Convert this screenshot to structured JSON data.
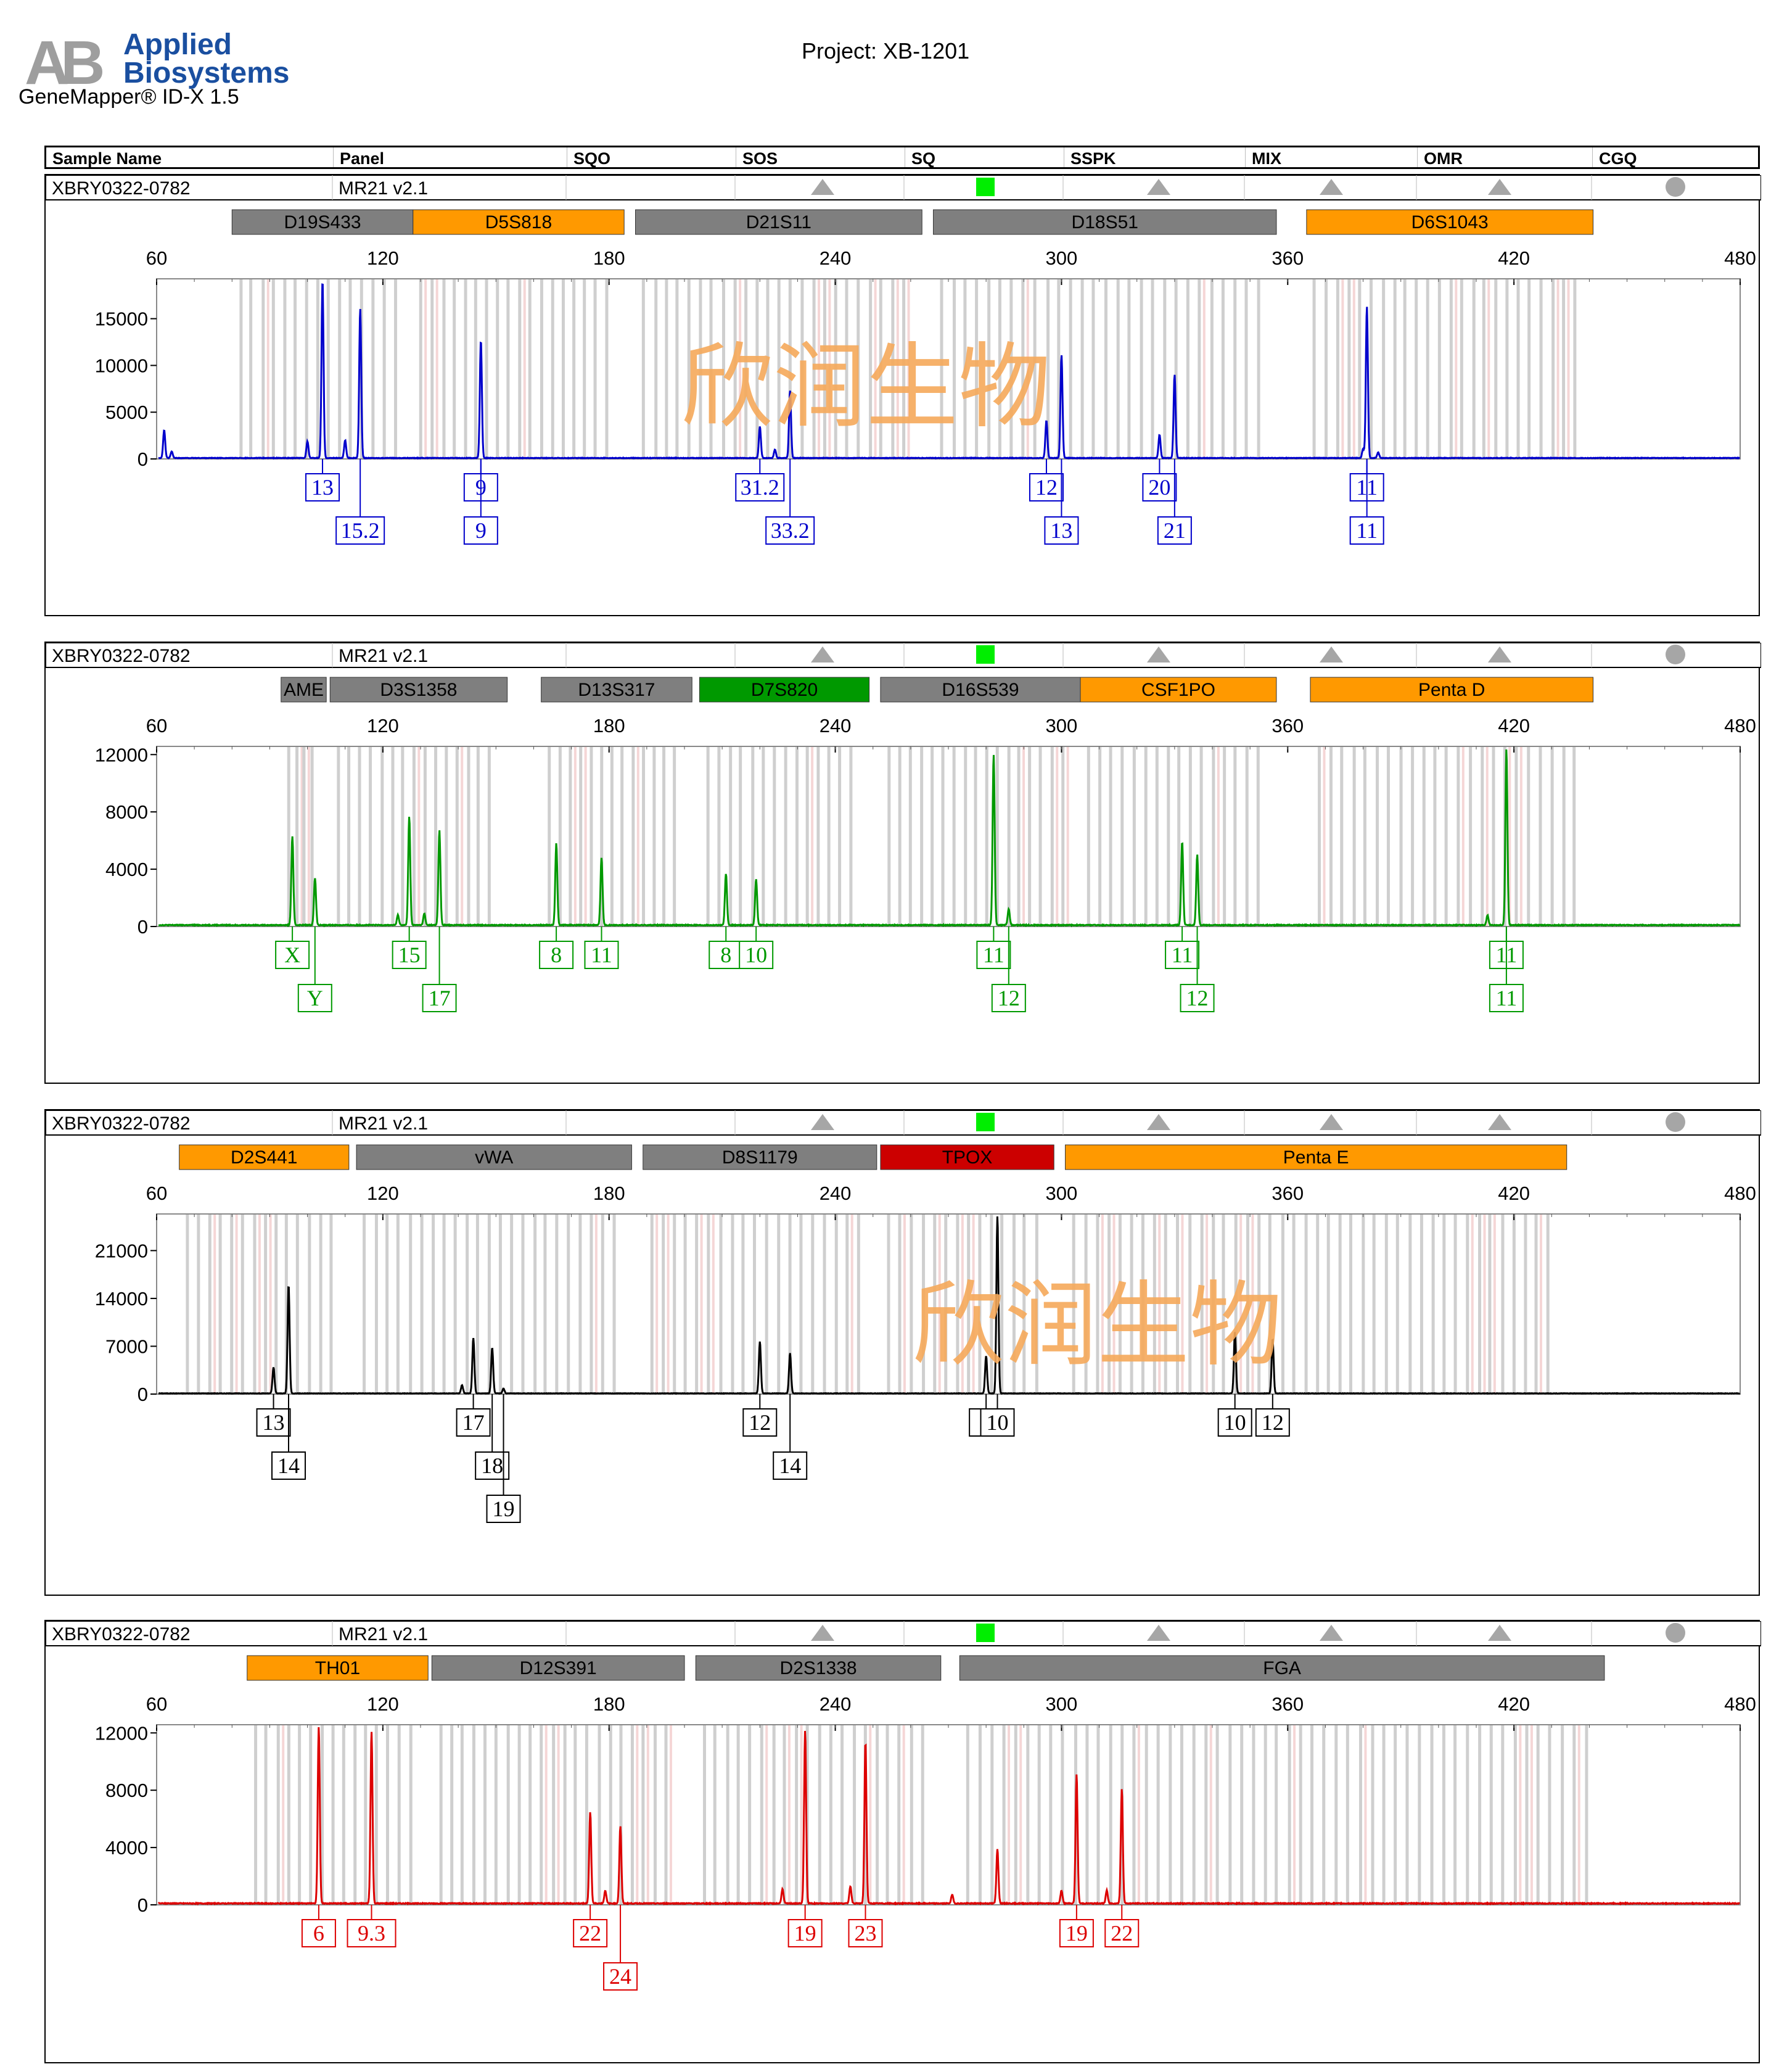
{
  "software": "GeneMapper® ID-X  1.5",
  "project": "Project: XB-1201",
  "logo": {
    "line1": "Applied",
    "line2": "Biosystems",
    "mark": "AB"
  },
  "header": [
    "Sample Name",
    "Panel",
    "SQO",
    "SOS",
    "SQ",
    "SSPK",
    "MIX",
    "OMR",
    "CGQ"
  ],
  "watermark": "欣润生物",
  "colors": {
    "blue": "#0000cc",
    "green": "#009900",
    "black": "#000000",
    "red": "#dd0000",
    "gray_marker": "#7f7f7f",
    "orange_marker": "#ff9900",
    "green_marker": "#009900",
    "red_marker": "#cc0000",
    "pass_green": "#00ee00",
    "triangle_gray": "#a6a6a6"
  },
  "chart_data": [
    {
      "type": "line",
      "sample": "XBRY0322-0782",
      "panel": "MR21  v2.1",
      "dye": "blue",
      "xlim": [
        60,
        480
      ],
      "xticks": [
        60,
        120,
        180,
        240,
        300,
        360,
        420,
        480
      ],
      "ylim": [
        0,
        19000
      ],
      "yticks": [
        0,
        5000,
        10000,
        15000
      ],
      "markers": [
        {
          "name": "D19S433",
          "start": 80,
          "end": 128,
          "color": "gray"
        },
        {
          "name": "D5S818",
          "start": 128,
          "end": 184,
          "color": "orange"
        },
        {
          "name": "D21S11",
          "start": 187,
          "end": 263,
          "color": "gray"
        },
        {
          "name": "D18S51",
          "start": 266,
          "end": 357,
          "color": "gray"
        },
        {
          "name": "D6S1043",
          "start": 365,
          "end": 441,
          "color": "orange"
        }
      ],
      "peaks": [
        [
          62,
          3000
        ],
        [
          64,
          700
        ],
        [
          100,
          1800
        ],
        [
          104,
          19000
        ],
        [
          110,
          1900
        ],
        [
          114,
          16000
        ],
        [
          146,
          12600
        ],
        [
          220,
          3400
        ],
        [
          224,
          900
        ],
        [
          228,
          7200
        ],
        [
          296,
          4000
        ],
        [
          300,
          11000
        ],
        [
          326,
          2500
        ],
        [
          330,
          8900
        ],
        [
          380,
          1000
        ],
        [
          381,
          16200
        ],
        [
          384,
          600
        ]
      ],
      "alleles": [
        {
          "x": 104,
          "row": 1,
          "label": "13"
        },
        {
          "x": 114,
          "row": 2,
          "label": "15.2"
        },
        {
          "x": 146,
          "row": 1,
          "label": "9"
        },
        {
          "x": 146,
          "row": 2,
          "label": "9"
        },
        {
          "x": 220,
          "row": 1,
          "label": "31.2"
        },
        {
          "x": 228,
          "row": 2,
          "label": "33.2"
        },
        {
          "x": 296,
          "row": 1,
          "label": "12"
        },
        {
          "x": 300,
          "row": 2,
          "label": "13"
        },
        {
          "x": 326,
          "row": 1,
          "label": "20"
        },
        {
          "x": 330,
          "row": 2,
          "label": "21"
        },
        {
          "x": 381,
          "row": 1,
          "label": "11"
        },
        {
          "x": 381,
          "row": 2,
          "label": "11"
        }
      ]
    },
    {
      "type": "line",
      "sample": "XBRY0322-0782",
      "panel": "MR21  v2.1",
      "dye": "green",
      "xlim": [
        60,
        480
      ],
      "xticks": [
        60,
        120,
        180,
        240,
        300,
        360,
        420,
        480
      ],
      "ylim": [
        0,
        12400
      ],
      "yticks": [
        0,
        4000,
        8000,
        12000
      ],
      "markers": [
        {
          "name": "AME",
          "start": 93,
          "end": 105,
          "color": "gray"
        },
        {
          "name": "D3S1358",
          "start": 106,
          "end": 153,
          "color": "gray"
        },
        {
          "name": "D13S317",
          "start": 162,
          "end": 202,
          "color": "gray"
        },
        {
          "name": "D7S820",
          "start": 204,
          "end": 249,
          "color": "green"
        },
        {
          "name": "D16S539",
          "start": 252,
          "end": 305,
          "color": "gray"
        },
        {
          "name": "CSF1PO",
          "start": 305,
          "end": 357,
          "color": "orange"
        },
        {
          "name": "Penta D",
          "start": 366,
          "end": 441,
          "color": "orange"
        }
      ],
      "peaks": [
        [
          96,
          6200
        ],
        [
          102,
          3300
        ],
        [
          124,
          700
        ],
        [
          127,
          7600
        ],
        [
          131,
          800
        ],
        [
          135,
          6600
        ],
        [
          166,
          5700
        ],
        [
          178,
          4700
        ],
        [
          211,
          3600
        ],
        [
          219,
          3200
        ],
        [
          282,
          11900
        ],
        [
          286,
          1100
        ],
        [
          332,
          5800
        ],
        [
          336,
          4900
        ],
        [
          413,
          700
        ],
        [
          418,
          12300
        ]
      ],
      "alleles": [
        {
          "x": 96,
          "row": 1,
          "label": "X"
        },
        {
          "x": 102,
          "row": 2,
          "label": "Y"
        },
        {
          "x": 127,
          "row": 1,
          "label": "15"
        },
        {
          "x": 135,
          "row": 2,
          "label": "17"
        },
        {
          "x": 166,
          "row": 1,
          "label": "8"
        },
        {
          "x": 178,
          "row": 1,
          "label": "11"
        },
        {
          "x": 211,
          "row": 1,
          "label": "8"
        },
        {
          "x": 219,
          "row": 1,
          "label": "10"
        },
        {
          "x": 282,
          "row": 1,
          "label": "11"
        },
        {
          "x": 286,
          "row": 2,
          "label": "12"
        },
        {
          "x": 332,
          "row": 1,
          "label": "11"
        },
        {
          "x": 336,
          "row": 2,
          "label": "12"
        },
        {
          "x": 418,
          "row": 1,
          "label": "11"
        },
        {
          "x": 418,
          "row": 2,
          "label": "11"
        }
      ]
    },
    {
      "type": "line",
      "sample": "XBRY0322-0782",
      "panel": "MR21  v2.1",
      "dye": "black",
      "xlim": [
        60,
        480
      ],
      "xticks": [
        60,
        120,
        180,
        240,
        300,
        360,
        420,
        480
      ],
      "ylim": [
        0,
        26000
      ],
      "yticks": [
        0,
        7000,
        14000,
        21000
      ],
      "markers": [
        {
          "name": "D2S441",
          "start": 66,
          "end": 111,
          "color": "orange"
        },
        {
          "name": "vWA",
          "start": 113,
          "end": 186,
          "color": "gray"
        },
        {
          "name": "D8S1179",
          "start": 189,
          "end": 251,
          "color": "gray"
        },
        {
          "name": "TPOX",
          "start": 252,
          "end": 298,
          "color": "red"
        },
        {
          "name": "Penta E",
          "start": 301,
          "end": 434,
          "color": "orange"
        }
      ],
      "peaks": [
        [
          91,
          3800
        ],
        [
          95,
          15900
        ],
        [
          141,
          1200
        ],
        [
          144,
          8100
        ],
        [
          149,
          6700
        ],
        [
          152,
          700
        ],
        [
          220,
          7600
        ],
        [
          228,
          5900
        ],
        [
          280,
          5500
        ],
        [
          283,
          26000
        ],
        [
          346,
          9000
        ],
        [
          356,
          8000
        ]
      ],
      "alleles": [
        {
          "x": 91,
          "row": 1,
          "label": "13"
        },
        {
          "x": 95,
          "row": 2,
          "label": "14"
        },
        {
          "x": 144,
          "row": 1,
          "label": "17"
        },
        {
          "x": 149,
          "row": 2,
          "label": "18"
        },
        {
          "x": 152,
          "row": 3,
          "label": "19"
        },
        {
          "x": 220,
          "row": 1,
          "label": "12"
        },
        {
          "x": 228,
          "row": 2,
          "label": "14"
        },
        {
          "x": 280,
          "row": 1,
          "label": "8"
        },
        {
          "x": 283,
          "row": 1,
          "label": "10"
        },
        {
          "x": 346,
          "row": 1,
          "label": "10"
        },
        {
          "x": 356,
          "row": 1,
          "label": "12"
        }
      ]
    },
    {
      "type": "line",
      "sample": "XBRY0322-0782",
      "panel": "MR21  v2.1",
      "dye": "red",
      "xlim": [
        60,
        480
      ],
      "xticks": [
        60,
        120,
        180,
        240,
        300,
        360,
        420,
        480
      ],
      "ylim": [
        0,
        12400
      ],
      "yticks": [
        0,
        4000,
        8000,
        12000
      ],
      "markers": [
        {
          "name": "TH01",
          "start": 84,
          "end": 132,
          "color": "orange"
        },
        {
          "name": "D12S391",
          "start": 133,
          "end": 200,
          "color": "gray"
        },
        {
          "name": "D2S1338",
          "start": 203,
          "end": 268,
          "color": "gray"
        },
        {
          "name": "FGA",
          "start": 273,
          "end": 444,
          "color": "gray"
        }
      ],
      "peaks": [
        [
          103,
          12400
        ],
        [
          117,
          12000
        ],
        [
          175,
          6400
        ],
        [
          179,
          900
        ],
        [
          183,
          5400
        ],
        [
          226,
          1000
        ],
        [
          232,
          12100
        ],
        [
          244,
          1200
        ],
        [
          248,
          11300
        ],
        [
          271,
          600
        ],
        [
          283,
          3800
        ],
        [
          300,
          900
        ],
        [
          304,
          9000
        ],
        [
          312,
          900
        ],
        [
          316,
          8000
        ]
      ],
      "alleles": [
        {
          "x": 103,
          "row": 1,
          "label": "6"
        },
        {
          "x": 117,
          "row": 1,
          "label": "9.3"
        },
        {
          "x": 175,
          "row": 1,
          "label": "22"
        },
        {
          "x": 183,
          "row": 2,
          "label": "24"
        },
        {
          "x": 232,
          "row": 1,
          "label": "19"
        },
        {
          "x": 248,
          "row": 1,
          "label": "23"
        },
        {
          "x": 304,
          "row": 1,
          "label": "19"
        },
        {
          "x": 316,
          "row": 1,
          "label": "22"
        }
      ]
    }
  ]
}
